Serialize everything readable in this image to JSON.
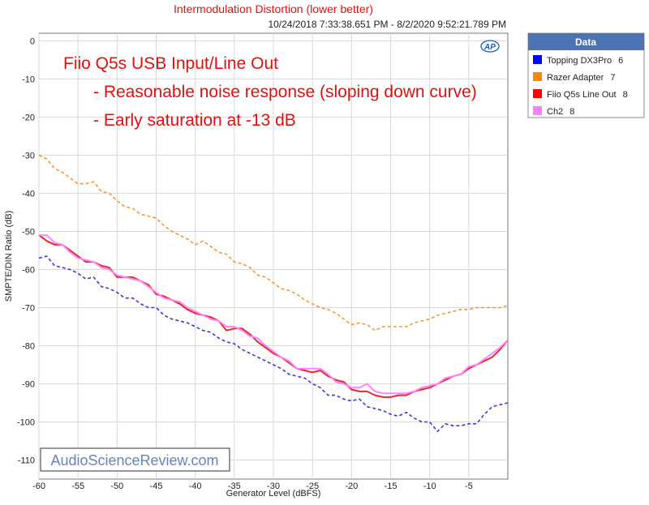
{
  "chart_data": {
    "type": "line",
    "title": "Intermodulation Distortion (lower better)",
    "subtitle": "10/24/2018 7:33:38.651 PM - 8/2/2020 9:52:21.789 PM",
    "xlabel": "Generator Level (dBFS)",
    "ylabel": "SMPTE/DIN Ratio (dB)",
    "xlim": [
      -60,
      0
    ],
    "ylim": [
      -115,
      2
    ],
    "xticks": [
      -60,
      -55,
      -50,
      -45,
      -40,
      -35,
      -30,
      -25,
      -20,
      -15,
      -10,
      -5
    ],
    "xtick_labels": [
      "-60",
      "-55",
      "-50",
      "-45",
      "-40",
      "-35",
      "-30",
      "-25",
      "-20",
      "-15",
      "-10",
      "-5"
    ],
    "yticks": [
      0,
      -10,
      -20,
      -30,
      -40,
      -50,
      -60,
      -70,
      -80,
      -90,
      -100,
      -110
    ],
    "ytick_labels": [
      "0",
      "-10",
      "-20",
      "-30",
      "-40",
      "-50",
      "-60",
      "-70",
      "-80",
      "-90",
      "-100",
      "-110"
    ],
    "grid": true,
    "legend_position": "right",
    "logo": "AP",
    "series": [
      {
        "name": "Topping DX3Pro",
        "count": "6",
        "color": "#3a3ad8",
        "legend_color": "#0000ff",
        "dash": true,
        "x": [
          -60,
          -59,
          -58,
          -57,
          -56,
          -55,
          -54,
          -53,
          -52,
          -51,
          -50,
          -49,
          -48,
          -47,
          -46,
          -45,
          -44,
          -43,
          -42,
          -41,
          -40,
          -39,
          -38,
          -37,
          -36,
          -35,
          -34,
          -33,
          -32,
          -31,
          -30,
          -29,
          -28,
          -27,
          -26,
          -25,
          -24,
          -23,
          -22,
          -21,
          -20,
          -19,
          -18,
          -17,
          -16,
          -15,
          -14,
          -13,
          -12,
          -11,
          -10,
          -9,
          -8,
          -7,
          -6,
          -5,
          -4,
          -3,
          -2,
          -1,
          0
        ],
        "y": [
          -57,
          -56.5,
          -59,
          -59.5,
          -60,
          -61,
          -62.5,
          -62,
          -64.5,
          -65,
          -66,
          -67.5,
          -67.5,
          -69,
          -70,
          -70,
          -72,
          -73,
          -73.5,
          -74,
          -75,
          -76,
          -76.5,
          -78,
          -79,
          -79.5,
          -81,
          -82,
          -83,
          -84,
          -85,
          -86,
          -87.5,
          -88,
          -88.5,
          -90,
          -91,
          -93,
          -93,
          -94,
          -94.5,
          -94,
          -96,
          -96.5,
          -97,
          -98,
          -98.5,
          -97.5,
          -99,
          -100,
          -100,
          -102.5,
          -100.5,
          -101,
          -101,
          -100.5,
          -100.5,
          -98,
          -96,
          -95.5,
          -95
        ]
      },
      {
        "name": "Razer Adapter",
        "count": "7",
        "color": "#ee9a3a",
        "legend_color": "#ff8800",
        "dash": true,
        "x": [
          -60,
          -59,
          -58,
          -57,
          -56,
          -55,
          -54,
          -53,
          -52,
          -51,
          -50,
          -49,
          -48,
          -47,
          -46,
          -45,
          -44,
          -43,
          -42,
          -41,
          -40,
          -39,
          -38,
          -37,
          -36,
          -35,
          -34,
          -33,
          -32,
          -31,
          -30,
          -29,
          -28,
          -27,
          -26,
          -25,
          -24,
          -23,
          -22,
          -21,
          -20,
          -19,
          -18,
          -17,
          -16,
          -15,
          -14,
          -13,
          -12,
          -11,
          -10,
          -9,
          -8,
          -7,
          -6,
          -5,
          -4,
          -3,
          -2,
          -1,
          0
        ],
        "y": [
          -30,
          -31,
          -33.5,
          -34.5,
          -36,
          -37.5,
          -37.5,
          -37,
          -39.5,
          -40,
          -42,
          -43.5,
          -44,
          -45.5,
          -46,
          -46.5,
          -48.5,
          -50,
          -51,
          -52,
          -53.5,
          -52.5,
          -54,
          -55.5,
          -56,
          -58,
          -58.5,
          -59.5,
          -61.5,
          -62,
          -63.5,
          -65,
          -65.5,
          -66.5,
          -68,
          -69,
          -70,
          -70.5,
          -71.5,
          -73,
          -74.5,
          -74,
          -74.5,
          -76,
          -75,
          -75,
          -75,
          -75,
          -74,
          -73.5,
          -73,
          -72,
          -71.5,
          -71,
          -70.5,
          -70.5,
          -70,
          -70,
          -70,
          -70,
          -69.5
        ]
      },
      {
        "name": "Fiio Q5s Line Out",
        "count": "8",
        "color": "#e82830",
        "legend_color": "#ff0000",
        "dash": false,
        "x": [
          -60,
          -59,
          -58,
          -57,
          -56,
          -55,
          -54,
          -53,
          -52,
          -51,
          -50,
          -49,
          -48,
          -47,
          -46,
          -45,
          -44,
          -43,
          -42,
          -41,
          -40,
          -39,
          -38,
          -37,
          -36,
          -35,
          -34,
          -33,
          -32,
          -31,
          -30,
          -29,
          -28,
          -27,
          -26,
          -25,
          -24,
          -23,
          -22,
          -21,
          -20,
          -19,
          -18,
          -17,
          -16,
          -15,
          -14,
          -13,
          -12,
          -11,
          -10,
          -9,
          -8,
          -7,
          -6,
          -5,
          -4,
          -3,
          -2,
          -1,
          0
        ],
        "y": [
          -51,
          -52.5,
          -53.5,
          -53.5,
          -55,
          -56.5,
          -58,
          -58,
          -59,
          -59.5,
          -62,
          -62,
          -62,
          -63,
          -64,
          -66.5,
          -67,
          -68,
          -69,
          -70.5,
          -71.5,
          -72,
          -72.5,
          -73.5,
          -76,
          -75.5,
          -75.5,
          -77,
          -79,
          -80.5,
          -82,
          -83,
          -84.5,
          -86,
          -86.5,
          -87,
          -86.5,
          -88,
          -89,
          -89.5,
          -91.5,
          -92,
          -92,
          -93,
          -93.5,
          -93.5,
          -93,
          -93,
          -92,
          -91.5,
          -91,
          -90,
          -89,
          -88,
          -87.5,
          -86,
          -85,
          -84,
          -83,
          -81,
          -78.5
        ]
      },
      {
        "name": "Ch2",
        "count": "8",
        "color": "#ff85ff",
        "legend_color": "#ff80ff",
        "dash": false,
        "x": [
          -60,
          -59,
          -58,
          -57,
          -56,
          -55,
          -54,
          -53,
          -52,
          -51,
          -50,
          -49,
          -48,
          -47,
          -46,
          -45,
          -44,
          -43,
          -42,
          -41,
          -40,
          -39,
          -38,
          -37,
          -36,
          -35,
          -34,
          -33,
          -32,
          -31,
          -30,
          -29,
          -28,
          -27,
          -26,
          -25,
          -24,
          -23,
          -22,
          -21,
          -20,
          -19,
          -18,
          -17,
          -16,
          -15,
          -14,
          -13,
          -12,
          -11,
          -10,
          -9,
          -8,
          -7,
          -6,
          -5,
          -4,
          -3,
          -2,
          -1,
          0
        ],
        "y": [
          -51,
          -51,
          -53,
          -53.5,
          -55.5,
          -57,
          -57.5,
          -58,
          -59.5,
          -60,
          -61.5,
          -62,
          -62.5,
          -63,
          -64.5,
          -66,
          -67.5,
          -68,
          -68.5,
          -70,
          -71,
          -72,
          -73,
          -73.5,
          -75,
          -75,
          -76,
          -77.5,
          -78,
          -80,
          -81.5,
          -83,
          -84,
          -86,
          -86,
          -86,
          -86,
          -87.5,
          -89.5,
          -90,
          -91,
          -91,
          -90,
          -92,
          -92.5,
          -92.5,
          -92.5,
          -92.5,
          -92,
          -91,
          -90.5,
          -90,
          -88.5,
          -88,
          -87.5,
          -85.5,
          -85,
          -83.5,
          -82,
          -80.5,
          -78.5
        ]
      }
    ]
  },
  "annotation": {
    "color": "#e01010",
    "lines": [
      "Fiio Q5s USB Input/Line Out",
      "- Reasonable noise response (sloping down curve)",
      "- Early saturation at -13 dB"
    ]
  },
  "legend": {
    "title": "Data"
  },
  "watermark": "AudioScienceReview.com"
}
